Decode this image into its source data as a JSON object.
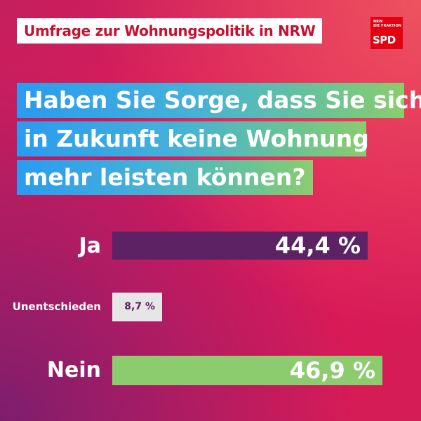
{
  "header": {
    "kicker": "Umfrage zur Wohnungspolitik in NRW",
    "logo": {
      "line1": "NRW",
      "line2": "DIE FRAKTION",
      "brand": "SPD"
    }
  },
  "question": {
    "line1": "Haben Sie Sorge, dass Sie sich",
    "line2": "in Zukunft keine Wohnung",
    "line3": "mehr leisten können?"
  },
  "chart_data": {
    "type": "bar",
    "orientation": "horizontal",
    "categories": [
      "Ja",
      "Unentschieden",
      "Nein"
    ],
    "values": [
      44.4,
      8.7,
      46.9
    ],
    "value_labels": [
      "44,4 %",
      "8,7 %",
      "46,9 %"
    ],
    "unit": "%",
    "colors": [
      "#5c2263",
      "#e6e6e6",
      "#8ccc6e"
    ],
    "label_colors": [
      "#ffffff",
      "#5c2263",
      "#ffffff"
    ]
  }
}
